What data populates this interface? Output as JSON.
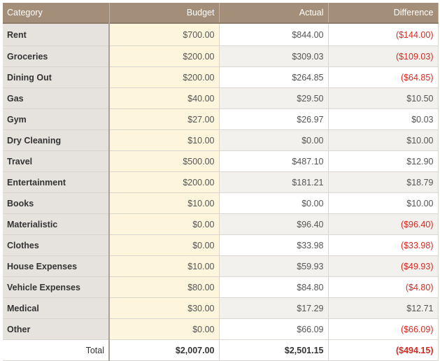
{
  "headers": {
    "category": "Category",
    "budget": "Budget",
    "actual": "Actual",
    "difference": "Difference"
  },
  "rows": [
    {
      "category": "Rent",
      "budget": "$700.00",
      "actual": "$844.00",
      "difference": "($144.00)",
      "negative": true
    },
    {
      "category": "Groceries",
      "budget": "$200.00",
      "actual": "$309.03",
      "difference": "($109.03)",
      "negative": true
    },
    {
      "category": "Dining Out",
      "budget": "$200.00",
      "actual": "$264.85",
      "difference": "($64.85)",
      "negative": true
    },
    {
      "category": "Gas",
      "budget": "$40.00",
      "actual": "$29.50",
      "difference": "$10.50",
      "negative": false
    },
    {
      "category": "Gym",
      "budget": "$27.00",
      "actual": "$26.97",
      "difference": "$0.03",
      "negative": false
    },
    {
      "category": "Dry Cleaning",
      "budget": "$10.00",
      "actual": "$0.00",
      "difference": "$10.00",
      "negative": false
    },
    {
      "category": "Travel",
      "budget": "$500.00",
      "actual": "$487.10",
      "difference": "$12.90",
      "negative": false
    },
    {
      "category": "Entertainment",
      "budget": "$200.00",
      "actual": "$181.21",
      "difference": "$18.79",
      "negative": false
    },
    {
      "category": "Books",
      "budget": "$10.00",
      "actual": "$0.00",
      "difference": "$10.00",
      "negative": false
    },
    {
      "category": "Materialistic",
      "budget": "$0.00",
      "actual": "$96.40",
      "difference": "($96.40)",
      "negative": true
    },
    {
      "category": "Clothes",
      "budget": "$0.00",
      "actual": "$33.98",
      "difference": "($33.98)",
      "negative": true
    },
    {
      "category": "House Expenses",
      "budget": "$10.00",
      "actual": "$59.93",
      "difference": "($49.93)",
      "negative": true
    },
    {
      "category": "Vehicle Expenses",
      "budget": "$80.00",
      "actual": "$84.80",
      "difference": "($4.80)",
      "negative": true
    },
    {
      "category": "Medical",
      "budget": "$30.00",
      "actual": "$17.29",
      "difference": "$12.71",
      "negative": false
    },
    {
      "category": "Other",
      "budget": "$0.00",
      "actual": "$66.09",
      "difference": "($66.09)",
      "negative": true
    }
  ],
  "total": {
    "label": "Total",
    "budget": "$2,007.00",
    "actual": "$2,501.15",
    "difference": "($494.15)",
    "negative": true
  },
  "colors": {
    "header": "#a38f79",
    "category_column": "#e6e3df",
    "budget_column": "#fdf6dd",
    "negative_text": "#d42a1f"
  }
}
